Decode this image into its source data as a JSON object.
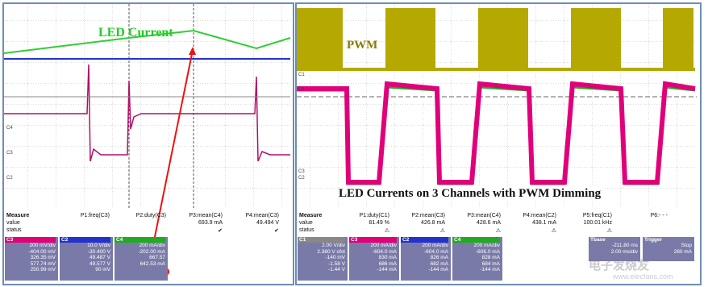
{
  "left": {
    "label": "LED Current",
    "markers": [
      "C4",
      "C3",
      "C2"
    ],
    "measure": {
      "rows": [
        "Measure",
        "value",
        "status"
      ],
      "columns": [
        {
          "name": "P1:freq(C3)"
        },
        {
          "name": "P2:duty(C3)"
        },
        {
          "name": "P3:mean(C4)",
          "value": "693.9 mA",
          "status": "✔"
        },
        {
          "name": "P4:mean(C3)",
          "value": "49.494 V",
          "status": "✔"
        }
      ]
    },
    "channels": [
      {
        "tag": "C3",
        "color": "#e0007a",
        "lines": [
          "200 mV/div",
          "-404.00 mV",
          "326.35 mV",
          "577.74 mV",
          "250.99 mV"
        ]
      },
      {
        "tag": "C2",
        "color": "#2233cc",
        "lines": [
          "10.0 V/div",
          "-30.400 V",
          "49.487 V",
          "49.577 V",
          "90 mV"
        ]
      },
      {
        "tag": "C4",
        "color": "#22aa22",
        "lines": [
          "200 mA/div",
          "-202.00 mA",
          "667.57",
          "642.53 mA"
        ]
      }
    ]
  },
  "right": {
    "label": "PWM",
    "caption": "LED Currents on 3 Channels with PWM Dimming",
    "markers": [
      "C1",
      "C4",
      "C3",
      "C2"
    ],
    "measure": {
      "rows": [
        "Measure",
        "value",
        "status"
      ],
      "columns": [
        {
          "name": "P1:duty(C1)",
          "value": "81.49 %",
          "status": "⚠"
        },
        {
          "name": "P2:mean(C3)",
          "value": "426.8 mA",
          "status": "⚠"
        },
        {
          "name": "P3:mean(C4)",
          "value": "428.6 mA",
          "status": "⚠"
        },
        {
          "name": "P4:mean(C2)",
          "value": "438.1 mA",
          "status": "⚠"
        },
        {
          "name": "P5:freq(C1)",
          "value": "100.01 kHz",
          "status": "⚠"
        },
        {
          "name": "P6:- - -"
        }
      ]
    },
    "channels": [
      {
        "tag": "C1",
        "color": "#888888",
        "lines": [
          "2.00 V/div",
          "2.360 V ofst",
          "-140 mV",
          "-1.58 V",
          "-1.44 V"
        ]
      },
      {
        "tag": "C3",
        "color": "#e0007a",
        "lines": [
          "200 mA/div",
          "-604.0 mA",
          "830 mA",
          "686 mA",
          "-144 mA"
        ]
      },
      {
        "tag": "C2",
        "color": "#2233cc",
        "lines": [
          "200 mA/div",
          "-604.0 mA",
          "826 mA",
          "682 mA",
          "-144 mA"
        ]
      },
      {
        "tag": "C4",
        "color": "#22aa22",
        "lines": [
          "200 mA/div",
          "-606.0 mA",
          "828 mA",
          "684 mA",
          "-144 mA"
        ]
      }
    ],
    "tbase": {
      "tag": "Tbase",
      "value": "-211.80 ms",
      "lines": [
        "2.00 ms/div"
      ]
    },
    "trigger": {
      "tag": "Trigger",
      "lines": [
        "Stop",
        "280 mA"
      ]
    }
  },
  "watermark": {
    "name": "电子发烧友",
    "url": "www.elecfans.com"
  }
}
